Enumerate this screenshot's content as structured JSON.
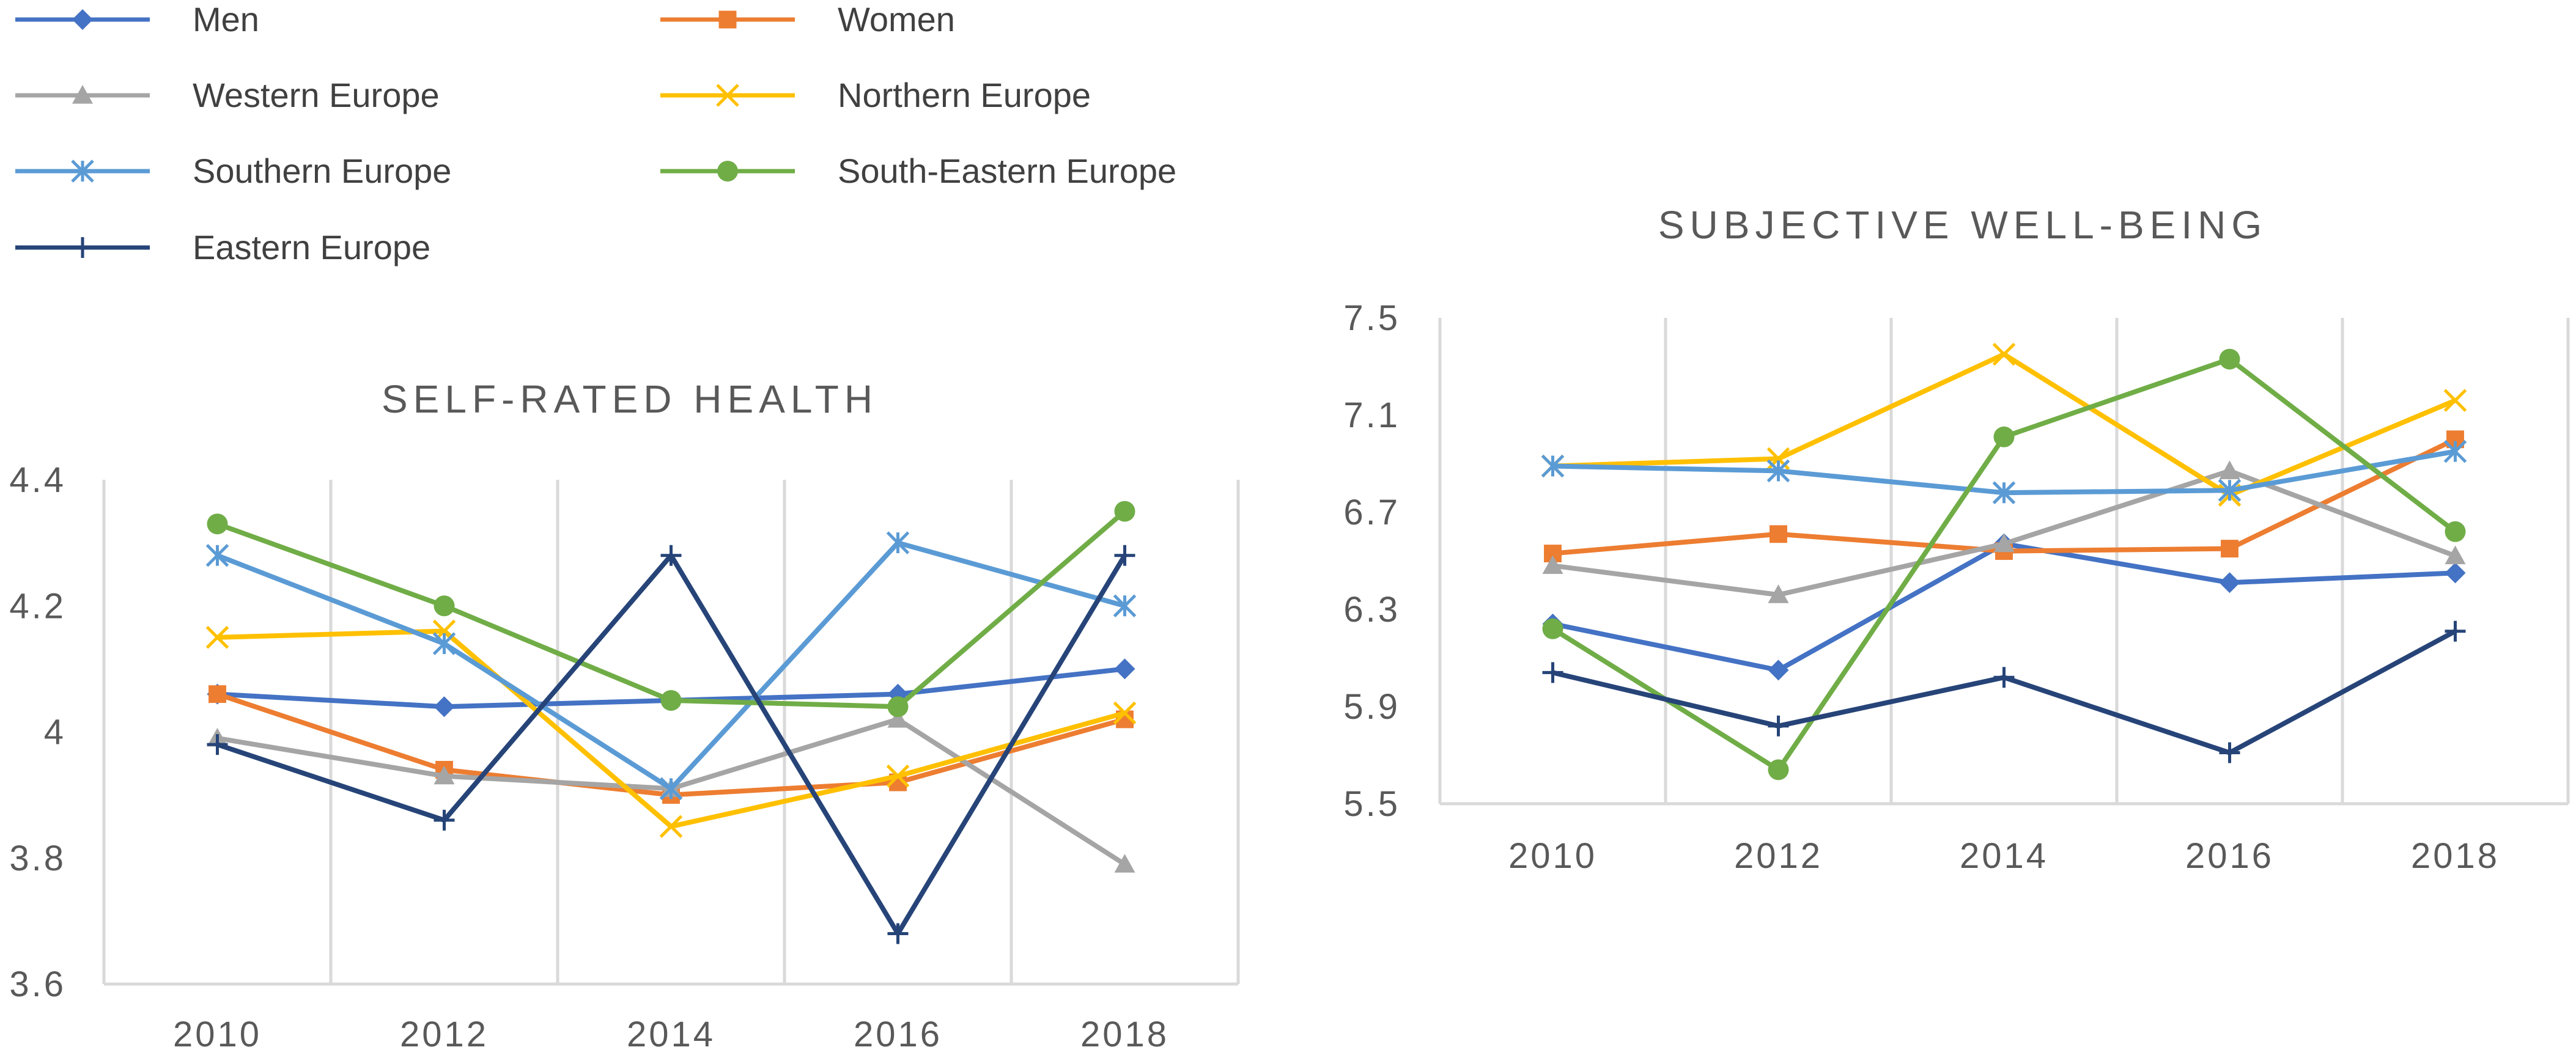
{
  "legend": [
    {
      "name": "Men",
      "color": "#4472C4",
      "marker": "diamond"
    },
    {
      "name": "Women",
      "color": "#ED7D31",
      "marker": "square"
    },
    {
      "name": "Western Europe",
      "color": "#A5A5A5",
      "marker": "triangle"
    },
    {
      "name": "Northern Europe",
      "color": "#FFC000",
      "marker": "x"
    },
    {
      "name": "Southern Europe",
      "color": "#5B9BD5",
      "marker": "asterisk"
    },
    {
      "name": "South-Eastern Europe",
      "color": "#70AD47",
      "marker": "circle"
    },
    {
      "name": "Eastern Europe",
      "color": "#264478",
      "marker": "plus"
    }
  ],
  "chart_data": [
    {
      "type": "line",
      "title": "SELF-RATED HEALTH",
      "categories": [
        "2010",
        "2012",
        "2014",
        "2016",
        "2018"
      ],
      "ylim": [
        3.6,
        4.4
      ],
      "yticks": [
        "3.6",
        "3.8",
        "4",
        "4.2",
        "4.4"
      ],
      "grid": "vertical",
      "series": [
        {
          "name": "Men",
          "values": [
            4.06,
            4.04,
            4.05,
            4.06,
            4.1
          ]
        },
        {
          "name": "Women",
          "values": [
            4.06,
            3.94,
            3.9,
            3.92,
            4.02
          ]
        },
        {
          "name": "Western Europe",
          "values": [
            3.99,
            3.93,
            3.91,
            4.02,
            3.79
          ]
        },
        {
          "name": "Northern Europe",
          "values": [
            4.15,
            4.16,
            3.85,
            3.93,
            4.03
          ]
        },
        {
          "name": "Southern Europe",
          "values": [
            4.28,
            4.14,
            3.91,
            4.3,
            4.2
          ]
        },
        {
          "name": "South-Eastern Europe",
          "values": [
            4.33,
            4.2,
            4.05,
            4.04,
            4.35
          ]
        },
        {
          "name": "Eastern Europe",
          "values": [
            3.98,
            3.86,
            4.28,
            3.68,
            4.28
          ]
        }
      ]
    },
    {
      "type": "line",
      "title": "SUBJECTIVE WELL-BEING",
      "categories": [
        "2010",
        "2012",
        "2014",
        "2016",
        "2018"
      ],
      "ylim": [
        5.5,
        7.5
      ],
      "yticks": [
        "5.5",
        "5.9",
        "6.3",
        "6.7",
        "7.1",
        "7.5"
      ],
      "grid": "vertical",
      "series": [
        {
          "name": "Men",
          "values": [
            6.24,
            6.05,
            6.57,
            6.41,
            6.45
          ]
        },
        {
          "name": "Women",
          "values": [
            6.53,
            6.61,
            6.54,
            6.55,
            7.0
          ]
        },
        {
          "name": "Western Europe",
          "values": [
            6.48,
            6.36,
            6.57,
            6.87,
            6.52
          ]
        },
        {
          "name": "Northern Europe",
          "values": [
            6.89,
            6.92,
            7.35,
            6.77,
            7.16
          ]
        },
        {
          "name": "Southern Europe",
          "values": [
            6.89,
            6.87,
            6.78,
            6.79,
            6.95
          ]
        },
        {
          "name": "South-Eastern Europe",
          "values": [
            6.22,
            5.64,
            7.01,
            7.33,
            6.62
          ]
        },
        {
          "name": "Eastern Europe",
          "values": [
            6.04,
            5.82,
            6.02,
            5.71,
            6.21
          ]
        }
      ]
    }
  ]
}
